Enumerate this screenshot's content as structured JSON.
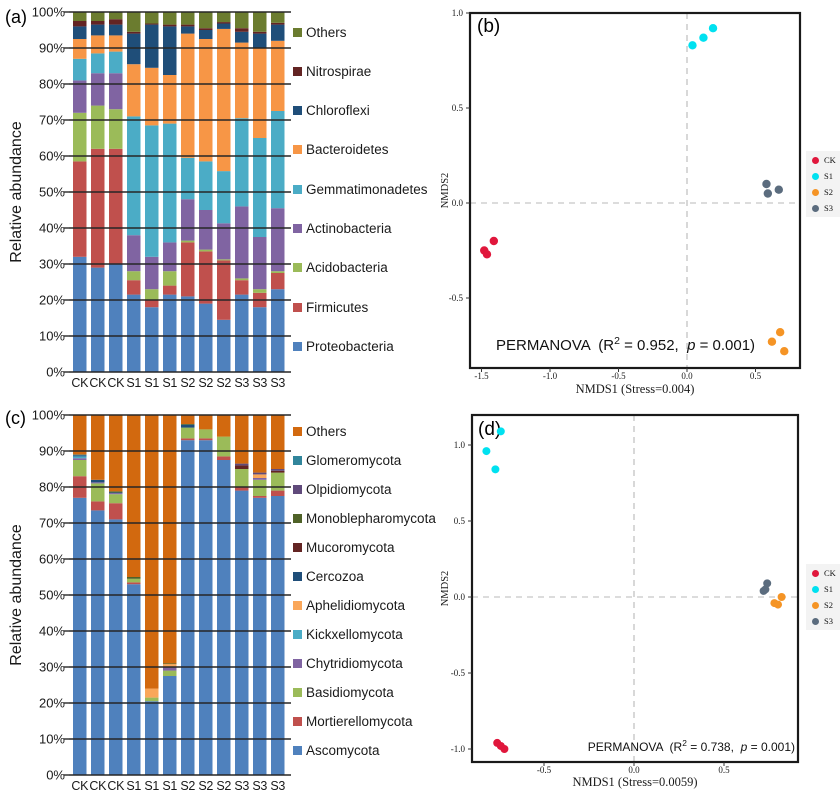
{
  "figure": {
    "panels": {
      "a": "(a)",
      "b": "(b)",
      "c": "(c)",
      "d": "(d)"
    }
  },
  "groups": [
    "CK",
    "S1",
    "S2",
    "S3"
  ],
  "chart_data": [
    {
      "id": "a",
      "type": "bar",
      "subtype": "stacked-percent",
      "ylabel": "Relative abundance",
      "categories": [
        "CK",
        "CK",
        "CK",
        "S1",
        "S1",
        "S1",
        "S2",
        "S2",
        "S2",
        "S3",
        "S3",
        "S3"
      ],
      "y_tick_values": [
        0,
        10,
        20,
        30,
        40,
        50,
        60,
        70,
        80,
        90,
        100
      ],
      "y_tick_labels": [
        "0%",
        "10%",
        "20%",
        "30%",
        "40%",
        "50%",
        "60%",
        "70%",
        "80%",
        "90%",
        "100%"
      ],
      "ylim": [
        0,
        100
      ],
      "grid": true,
      "legend_position": "right",
      "series": [
        {
          "name": "Proteobacteria",
          "color": "#4F81BD",
          "values": [
            32,
            29,
            30,
            21.5,
            18,
            21.5,
            21,
            19,
            14.5,
            21.5,
            18,
            23
          ]
        },
        {
          "name": "Firmicutes",
          "color": "#C0504D",
          "values": [
            26.5,
            33,
            32,
            4,
            2,
            2.5,
            15,
            14.5,
            16.5,
            4,
            4,
            4.5
          ]
        },
        {
          "name": "Acidobacteria",
          "color": "#9BBB59",
          "values": [
            13.5,
            12,
            11,
            2.5,
            3,
            4,
            0.5,
            0.5,
            0.3,
            0.5,
            1,
            0.5
          ]
        },
        {
          "name": "Actinobacteria",
          "color": "#8064A2",
          "values": [
            9,
            9,
            10,
            10,
            9,
            8,
            11.5,
            11,
            10,
            20,
            14.5,
            17.5
          ]
        },
        {
          "name": "Gemmatimonadetes",
          "color": "#4BACC6",
          "values": [
            6,
            5.5,
            6,
            33,
            36.5,
            33,
            11.5,
            13.5,
            14.5,
            24.5,
            27.5,
            27
          ]
        },
        {
          "name": "Bacteroidetes",
          "color": "#F79646",
          "values": [
            5.5,
            5,
            4.5,
            14.5,
            16,
            13.5,
            34.5,
            34,
            39.5,
            21,
            25,
            19.5
          ]
        },
        {
          "name": "Chloroflexi",
          "color": "#1F4E79",
          "values": [
            3.5,
            3,
            3,
            8.5,
            12,
            13.5,
            2,
            2.5,
            1.5,
            3,
            4,
            4.5
          ]
        },
        {
          "name": "Nitrospirae",
          "color": "#632423",
          "values": [
            1.5,
            1,
            1.5,
            0.5,
            0.3,
            0.5,
            0.5,
            0.5,
            0.4,
            1,
            0.5,
            0.5
          ]
        },
        {
          "name": "Others",
          "color": "#6B7C2F",
          "values": [
            2.5,
            2.5,
            2,
            5.5,
            3.2,
            3.5,
            3.5,
            4.5,
            2.8,
            4.5,
            5.5,
            3
          ]
        }
      ]
    },
    {
      "id": "b",
      "type": "scatter",
      "xlabel": "NMDS1 (Stress=0.004)",
      "ylabel": "NMDS2",
      "xlim": [
        -1.58,
        0.82
      ],
      "ylim": [
        -0.87,
        1.0
      ],
      "x_tick_values": [
        -1.5,
        -1.0,
        -0.5,
        0.0,
        0.5
      ],
      "x_tick_labels": [
        "-1.5",
        "-1.0",
        "-0.5",
        "0.0",
        "0.5"
      ],
      "y_tick_values": [
        -0.5,
        0.0,
        0.5,
        1.0
      ],
      "y_tick_labels": [
        "-0.5",
        "0.0",
        "0.5",
        "1.0"
      ],
      "zero_lines": true,
      "legend_position": "right",
      "annotation": {
        "t1": "PERMANOVA  (R",
        "sup": "2",
        "t2": " = 0.952,  ",
        "p": "p",
        "t3": " = 0.001)"
      },
      "series": [
        {
          "name": "CK",
          "color": "#E0173C",
          "points": [
            [
              -1.48,
              -0.25
            ],
            [
              -1.46,
              -0.27
            ],
            [
              -1.41,
              -0.2
            ]
          ]
        },
        {
          "name": "S1",
          "color": "#00E1F0",
          "points": [
            [
              0.04,
              0.83
            ],
            [
              0.12,
              0.87
            ],
            [
              0.19,
              0.92
            ]
          ]
        },
        {
          "name": "S2",
          "color": "#F59425",
          "points": [
            [
              0.62,
              -0.73
            ],
            [
              0.68,
              -0.68
            ],
            [
              0.71,
              -0.78
            ]
          ]
        },
        {
          "name": "S3",
          "color": "#5B6C7E",
          "points": [
            [
              0.58,
              0.1
            ],
            [
              0.59,
              0.05
            ],
            [
              0.67,
              0.07
            ]
          ]
        }
      ]
    },
    {
      "id": "c",
      "type": "bar",
      "subtype": "stacked-percent",
      "ylabel": "Relative abundance",
      "categories": [
        "CK",
        "CK",
        "CK",
        "S1",
        "S1",
        "S1",
        "S2",
        "S2",
        "S2",
        "S3",
        "S3",
        "S3"
      ],
      "y_tick_values": [
        0,
        10,
        20,
        30,
        40,
        50,
        60,
        70,
        80,
        90,
        100
      ],
      "y_tick_labels": [
        "0%",
        "10%",
        "20%",
        "30%",
        "40%",
        "50%",
        "60%",
        "70%",
        "80%",
        "90%",
        "100%"
      ],
      "ylim": [
        0,
        100
      ],
      "grid": true,
      "legend_position": "right",
      "series": [
        {
          "name": "Ascomycota",
          "color": "#4F81BD",
          "values": [
            77,
            73.5,
            71,
            53,
            20.5,
            27.5,
            93,
            93,
            87.5,
            79,
            77,
            77.5
          ]
        },
        {
          "name": "Mortierellomycota",
          "color": "#C0504D",
          "values": [
            6,
            2.5,
            4.5,
            0.5,
            0,
            0,
            0.5,
            0.5,
            1,
            1,
            0.5,
            1.5
          ]
        },
        {
          "name": "Basidiomycota",
          "color": "#9BBB59",
          "values": [
            4.5,
            5,
            2.5,
            1,
            1,
            1.5,
            3,
            2.5,
            5.5,
            5,
            4.5,
            5
          ]
        },
        {
          "name": "Chytridiomycota",
          "color": "#8064A2",
          "values": [
            0.5,
            0.3,
            0.3,
            0,
            0,
            1,
            0,
            0,
            0,
            0,
            0.5,
            0
          ]
        },
        {
          "name": "Kickxellomycota",
          "color": "#4BACC6",
          "values": [
            0.5,
            0,
            0,
            0,
            0,
            0,
            0,
            0,
            0,
            0,
            0,
            0
          ]
        },
        {
          "name": "Aphelidiomycota",
          "color": "#FAA75A",
          "values": [
            0,
            0,
            0,
            0,
            2.5,
            0.8,
            0,
            0,
            0,
            0,
            1,
            0
          ]
        },
        {
          "name": "Cercozoa",
          "color": "#1F4E79",
          "values": [
            0.3,
            0.7,
            0.2,
            0,
            0,
            0,
            0.8,
            0,
            0,
            0,
            0,
            0
          ]
        },
        {
          "name": "Mucoromycota",
          "color": "#632423",
          "values": [
            0,
            0,
            0,
            0,
            0,
            0,
            0,
            0,
            0,
            1,
            0,
            0.5
          ]
        },
        {
          "name": "Monoblepharomycota",
          "color": "#4F6228",
          "values": [
            0,
            0,
            0.3,
            0.5,
            0,
            0.2,
            0.2,
            0,
            0,
            0,
            0,
            0
          ]
        },
        {
          "name": "Olpidiomycota",
          "color": "#604A7B",
          "values": [
            0,
            0,
            0,
            0,
            0,
            0,
            0,
            0,
            0,
            0.5,
            0.5,
            0.5
          ]
        },
        {
          "name": "Glomeromycota",
          "color": "#31859B",
          "values": [
            0.2,
            0,
            0,
            0,
            0,
            0,
            0,
            0,
            0,
            0,
            0,
            0
          ]
        },
        {
          "name": "Others",
          "color": "#D2690F",
          "values": [
            11,
            18,
            21.2,
            45,
            76,
            69,
            2.5,
            4,
            6,
            13.5,
            16,
            15
          ]
        }
      ]
    },
    {
      "id": "d",
      "type": "scatter",
      "xlabel": "NMDS1 (Stress=0.0059)",
      "ylabel": "NMDS2",
      "xlim": [
        -0.9,
        0.91
      ],
      "ylim": [
        -1.09,
        1.2
      ],
      "x_tick_values": [
        -0.5,
        0.0,
        0.5
      ],
      "x_tick_labels": [
        "-0.5",
        "0.0",
        "0.5"
      ],
      "y_tick_values": [
        -1.0,
        -0.5,
        0.0,
        0.5,
        1.0
      ],
      "y_tick_labels": [
        "-1.0",
        "-0.5",
        "0.0",
        "0.5",
        "1.0"
      ],
      "zero_lines": true,
      "legend_position": "right",
      "annotation": {
        "t1": "PERMANOVA  (R",
        "sup": "2",
        "t2": " = 0.738,  ",
        "p": "p",
        "t3": " = 0.001)"
      },
      "series": [
        {
          "name": "CK",
          "color": "#E0173C",
          "points": [
            [
              -0.76,
              -0.96
            ],
            [
              -0.74,
              -0.98
            ],
            [
              -0.72,
              -1.0
            ]
          ]
        },
        {
          "name": "S1",
          "color": "#00E1F0",
          "points": [
            [
              -0.74,
              1.09
            ],
            [
              -0.82,
              0.96
            ],
            [
              -0.77,
              0.84
            ]
          ]
        },
        {
          "name": "S2",
          "color": "#F59425",
          "points": [
            [
              0.82,
              0.0
            ],
            [
              0.78,
              -0.04
            ],
            [
              0.8,
              -0.05
            ]
          ]
        },
        {
          "name": "S3",
          "color": "#5B6C7E",
          "points": [
            [
              0.72,
              0.04
            ],
            [
              0.73,
              0.05
            ],
            [
              0.74,
              0.09
            ]
          ]
        }
      ]
    }
  ]
}
